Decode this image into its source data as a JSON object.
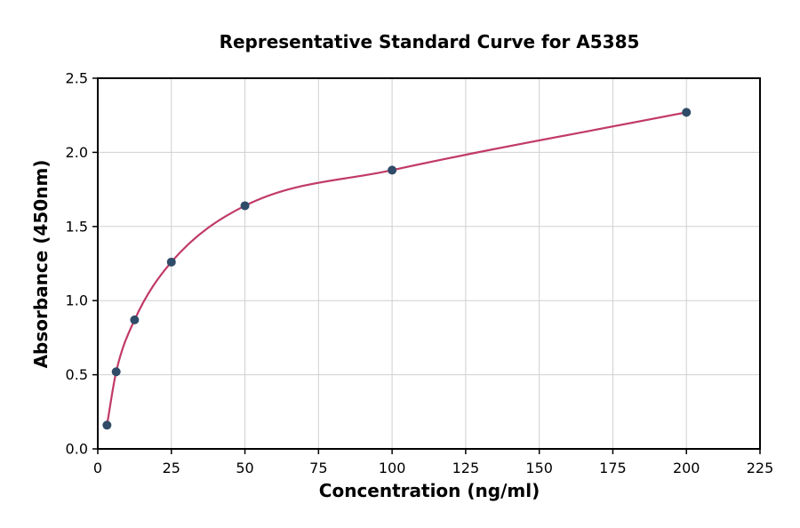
{
  "figure": {
    "background": "#ffffff"
  },
  "chart_data": {
    "type": "scatter",
    "title": "Representative Standard Curve for A5385",
    "xlabel": "Concentration (ng/ml)",
    "ylabel": "Absorbance (450nm)",
    "xlim": [
      0,
      225
    ],
    "ylim": [
      0.0,
      2.5
    ],
    "xticks": [
      0,
      25,
      50,
      75,
      100,
      125,
      150,
      175,
      200,
      225
    ],
    "xtick_labels": [
      "0",
      "25",
      "50",
      "75",
      "100",
      "125",
      "150",
      "175",
      "200",
      "225"
    ],
    "yticks": [
      0.0,
      0.5,
      1.0,
      1.5,
      2.0,
      2.5
    ],
    "ytick_labels": [
      "0.0",
      "0.5",
      "1.0",
      "1.5",
      "2.0",
      "2.5"
    ],
    "grid": true,
    "legend": "none",
    "colors": {
      "grid": "#d0d0d0",
      "axis": "#000000",
      "background": "#ffffff"
    },
    "series": [
      {
        "name": "standards",
        "type": "scatter",
        "color": "#2f4b68",
        "x": [
          3.125,
          6.25,
          12.5,
          25,
          50,
          100,
          200
        ],
        "y": [
          0.16,
          0.52,
          0.87,
          1.26,
          1.64,
          1.88,
          2.27
        ]
      },
      {
        "name": "fit-curve",
        "type": "line",
        "color": "#c13a66",
        "through": "standards"
      }
    ]
  }
}
